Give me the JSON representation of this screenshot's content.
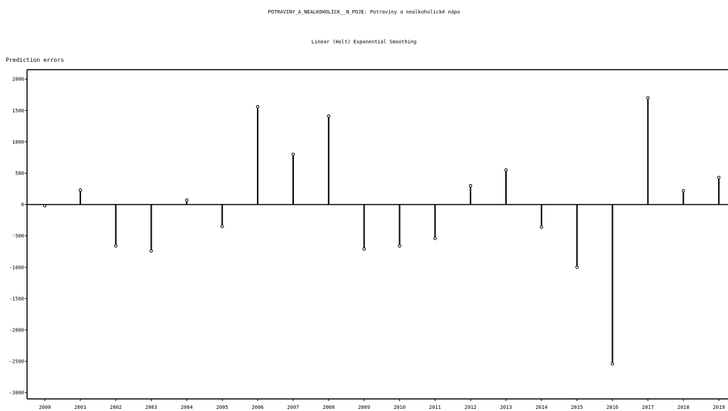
{
  "chart_data": {
    "type": "bar",
    "title": "POTRAVINY_A_NEALKOHOLICK__N_POJE: Potraviny a nealkoholické nápo",
    "subtitle": "Linear (Holt) Exponential Smoothing",
    "ylabel": "Prediction errors",
    "xlabel": "",
    "categories": [
      "2000",
      "2001",
      "2002",
      "2003",
      "2004",
      "2005",
      "2006",
      "2007",
      "2008",
      "2009",
      "2010",
      "2011",
      "2012",
      "2013",
      "2014",
      "2015",
      "2016",
      "2017",
      "2018",
      "2019"
    ],
    "values": [
      -20,
      230,
      -660,
      -740,
      70,
      -350,
      1560,
      800,
      1410,
      -710,
      -660,
      -540,
      300,
      550,
      -360,
      -1000,
      -2540,
      1700,
      220,
      430
    ],
    "ylim": [
      -3100,
      2150
    ],
    "yticks": [
      2000,
      1500,
      1000,
      500,
      0,
      -500,
      -1000,
      -1500,
      -2000,
      -2500,
      -3000
    ],
    "grid": false,
    "mark": "stem-with-dot"
  }
}
